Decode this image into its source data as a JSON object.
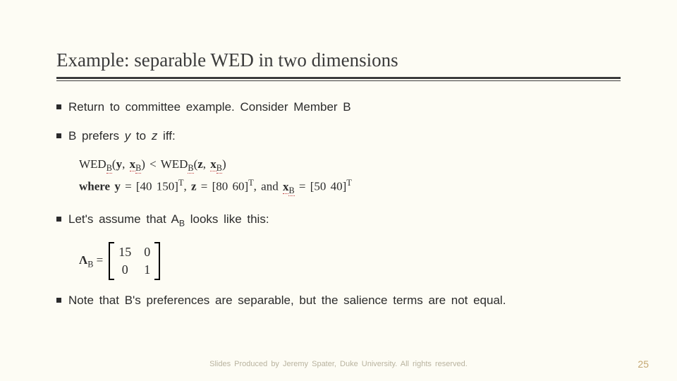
{
  "title": "Example: separable WED in two dimensions",
  "bullets": {
    "b1": "Return to committee example. Consider Member B",
    "b2_pre": "B prefers ",
    "b2_y": "y",
    "b2_mid": " to ",
    "b2_z": "z",
    "b2_post": " iff:",
    "b3_pre": "Let's assume that A",
    "b3_sub": "B",
    "b3_post": " looks like this:",
    "b4": "Note that B's preferences are separable, but the salience terms are not equal."
  },
  "math": {
    "line1": {
      "wed1": "WED",
      "sub1": "B",
      "args1_open": "(",
      "y": "y",
      "comma1": ", ",
      "xb1_x": "x",
      "xb1_sub": "B",
      "args1_close": ")",
      "lt": " < ",
      "wed2": "WED",
      "sub2": "B",
      "args2_open": "(",
      "z": "z",
      "comma2": ", ",
      "xb2_x": "x",
      "xb2_sub": "B",
      "args2_close": ")"
    },
    "line2": {
      "where": "where ",
      "y": "y",
      "yeq": " = [40 150]",
      "T1": "T",
      "comma1": ", ",
      "z": "z",
      "zeq": " = [80 60]",
      "T2": "T",
      "comma2": ", and ",
      "xb_x": "x",
      "xb_sub": "B",
      "xbeq": " = [50 40]",
      "T3": "T"
    },
    "matrix": {
      "lhs_sym": "Λ",
      "lhs_sub": "B",
      "eq": " = ",
      "a11": "15",
      "a12": "0",
      "a21": "0",
      "a22": "1"
    }
  },
  "footer": "Slides Produced by Jeremy Spater, Duke University. All rights reserved.",
  "page": "25",
  "colors": {
    "background": "#fdfcf4",
    "text": "#2b2b2b",
    "rule": "#3b3b3b",
    "footer": "#b9b39f",
    "pagenum": "#c4a772",
    "dotted_underline": "#c04040"
  }
}
